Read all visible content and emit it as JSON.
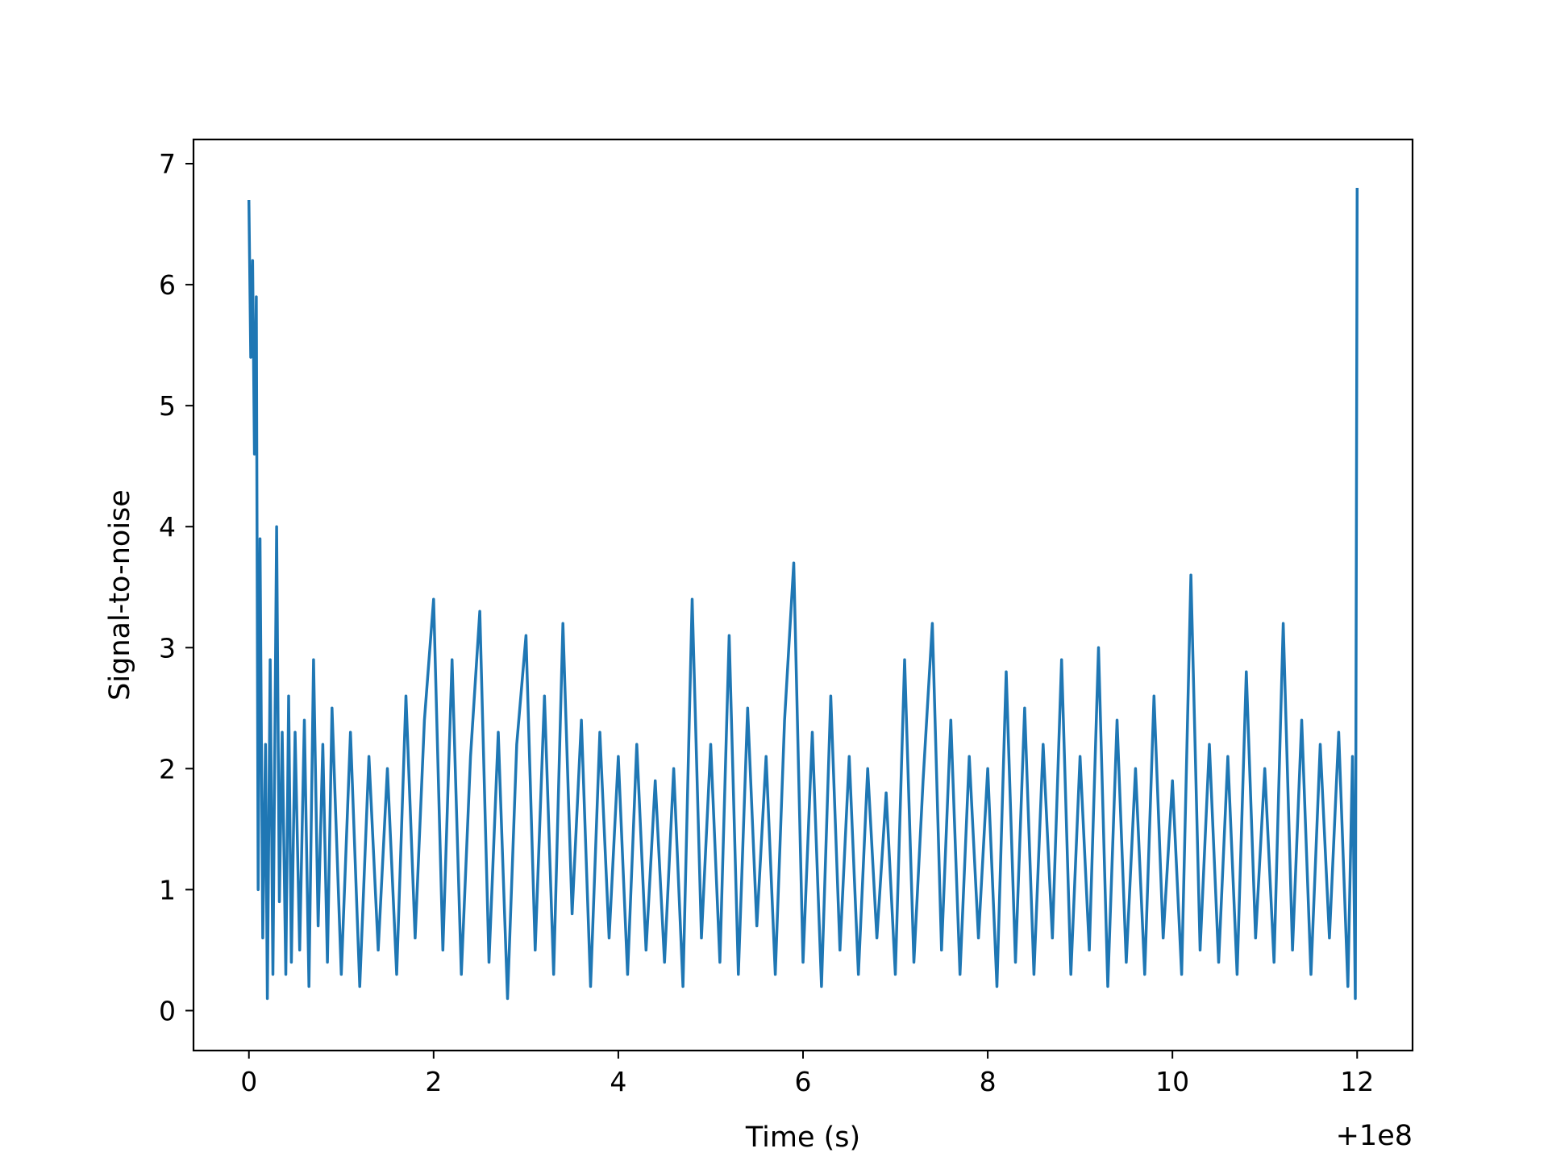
{
  "chart_data": {
    "type": "line",
    "title": "",
    "xlabel": "Time (s)",
    "ylabel": "Signal-to-noise",
    "x_offset_label": "+1e8",
    "xlim": [
      -0.6,
      12.6
    ],
    "ylim": [
      -0.33,
      7.2
    ],
    "xticks": [
      0,
      2,
      4,
      6,
      8,
      10,
      12
    ],
    "yticks": [
      0,
      1,
      2,
      3,
      4,
      5,
      6,
      7
    ],
    "grid": false,
    "legend": "none",
    "series_color": "#1f77b4",
    "series": [
      {
        "x": [
          0.0,
          0.02,
          0.04,
          0.06,
          0.08,
          0.1,
          0.12,
          0.15,
          0.18,
          0.2,
          0.23,
          0.26,
          0.3,
          0.33,
          0.36,
          0.4,
          0.43,
          0.46,
          0.5,
          0.55,
          0.6,
          0.65,
          0.7,
          0.75,
          0.8,
          0.85,
          0.9,
          1.0,
          1.1,
          1.2,
          1.3,
          1.4,
          1.5,
          1.6,
          1.7,
          1.8,
          1.9,
          2.0,
          2.1,
          2.2,
          2.3,
          2.4,
          2.5,
          2.6,
          2.7,
          2.8,
          2.9,
          3.0,
          3.1,
          3.2,
          3.3,
          3.4,
          3.5,
          3.6,
          3.7,
          3.8,
          3.9,
          4.0,
          4.1,
          4.2,
          4.3,
          4.4,
          4.5,
          4.6,
          4.7,
          4.8,
          4.9,
          5.0,
          5.1,
          5.2,
          5.3,
          5.4,
          5.5,
          5.6,
          5.7,
          5.8,
          5.9,
          6.0,
          6.1,
          6.2,
          6.3,
          6.4,
          6.5,
          6.6,
          6.7,
          6.8,
          6.9,
          7.0,
          7.1,
          7.2,
          7.3,
          7.4,
          7.5,
          7.6,
          7.7,
          7.8,
          7.9,
          8.0,
          8.1,
          8.2,
          8.3,
          8.4,
          8.5,
          8.6,
          8.7,
          8.8,
          8.9,
          9.0,
          9.1,
          9.2,
          9.3,
          9.4,
          9.5,
          9.6,
          9.7,
          9.8,
          9.9,
          10.0,
          10.1,
          10.2,
          10.3,
          10.4,
          10.5,
          10.6,
          10.7,
          10.8,
          10.9,
          11.0,
          11.1,
          11.2,
          11.3,
          11.4,
          11.5,
          11.6,
          11.7,
          11.8,
          11.9,
          11.95,
          11.98,
          12.0
        ],
        "y": [
          6.7,
          5.4,
          6.2,
          4.6,
          5.9,
          1.0,
          3.9,
          0.6,
          2.2,
          0.1,
          2.9,
          0.3,
          4.0,
          0.9,
          2.3,
          0.3,
          2.6,
          0.4,
          2.3,
          0.5,
          2.4,
          0.2,
          2.9,
          0.7,
          2.2,
          0.4,
          2.5,
          0.3,
          2.3,
          0.2,
          2.1,
          0.5,
          2.0,
          0.3,
          2.6,
          0.6,
          2.4,
          3.4,
          0.5,
          2.9,
          0.3,
          2.1,
          3.3,
          0.4,
          2.3,
          0.1,
          2.2,
          3.1,
          0.5,
          2.6,
          0.3,
          3.2,
          0.8,
          2.4,
          0.2,
          2.3,
          0.6,
          2.1,
          0.3,
          2.2,
          0.5,
          1.9,
          0.4,
          2.0,
          0.2,
          3.4,
          0.6,
          2.2,
          0.4,
          3.1,
          0.3,
          2.5,
          0.7,
          2.1,
          0.3,
          2.4,
          3.7,
          0.4,
          2.3,
          0.2,
          2.6,
          0.5,
          2.1,
          0.3,
          2.0,
          0.6,
          1.8,
          0.3,
          2.9,
          0.4,
          1.9,
          3.2,
          0.5,
          2.4,
          0.3,
          2.1,
          0.6,
          2.0,
          0.2,
          2.8,
          0.4,
          2.5,
          0.3,
          2.2,
          0.6,
          2.9,
          0.3,
          2.1,
          0.5,
          3.0,
          0.2,
          2.4,
          0.4,
          2.0,
          0.3,
          2.6,
          0.6,
          1.9,
          0.3,
          3.6,
          0.5,
          2.2,
          0.4,
          2.1,
          0.3,
          2.8,
          0.6,
          2.0,
          0.4,
          3.2,
          0.5,
          2.4,
          0.3,
          2.2,
          0.6,
          2.3,
          0.2,
          2.1,
          0.1,
          6.8
        ]
      }
    ]
  }
}
